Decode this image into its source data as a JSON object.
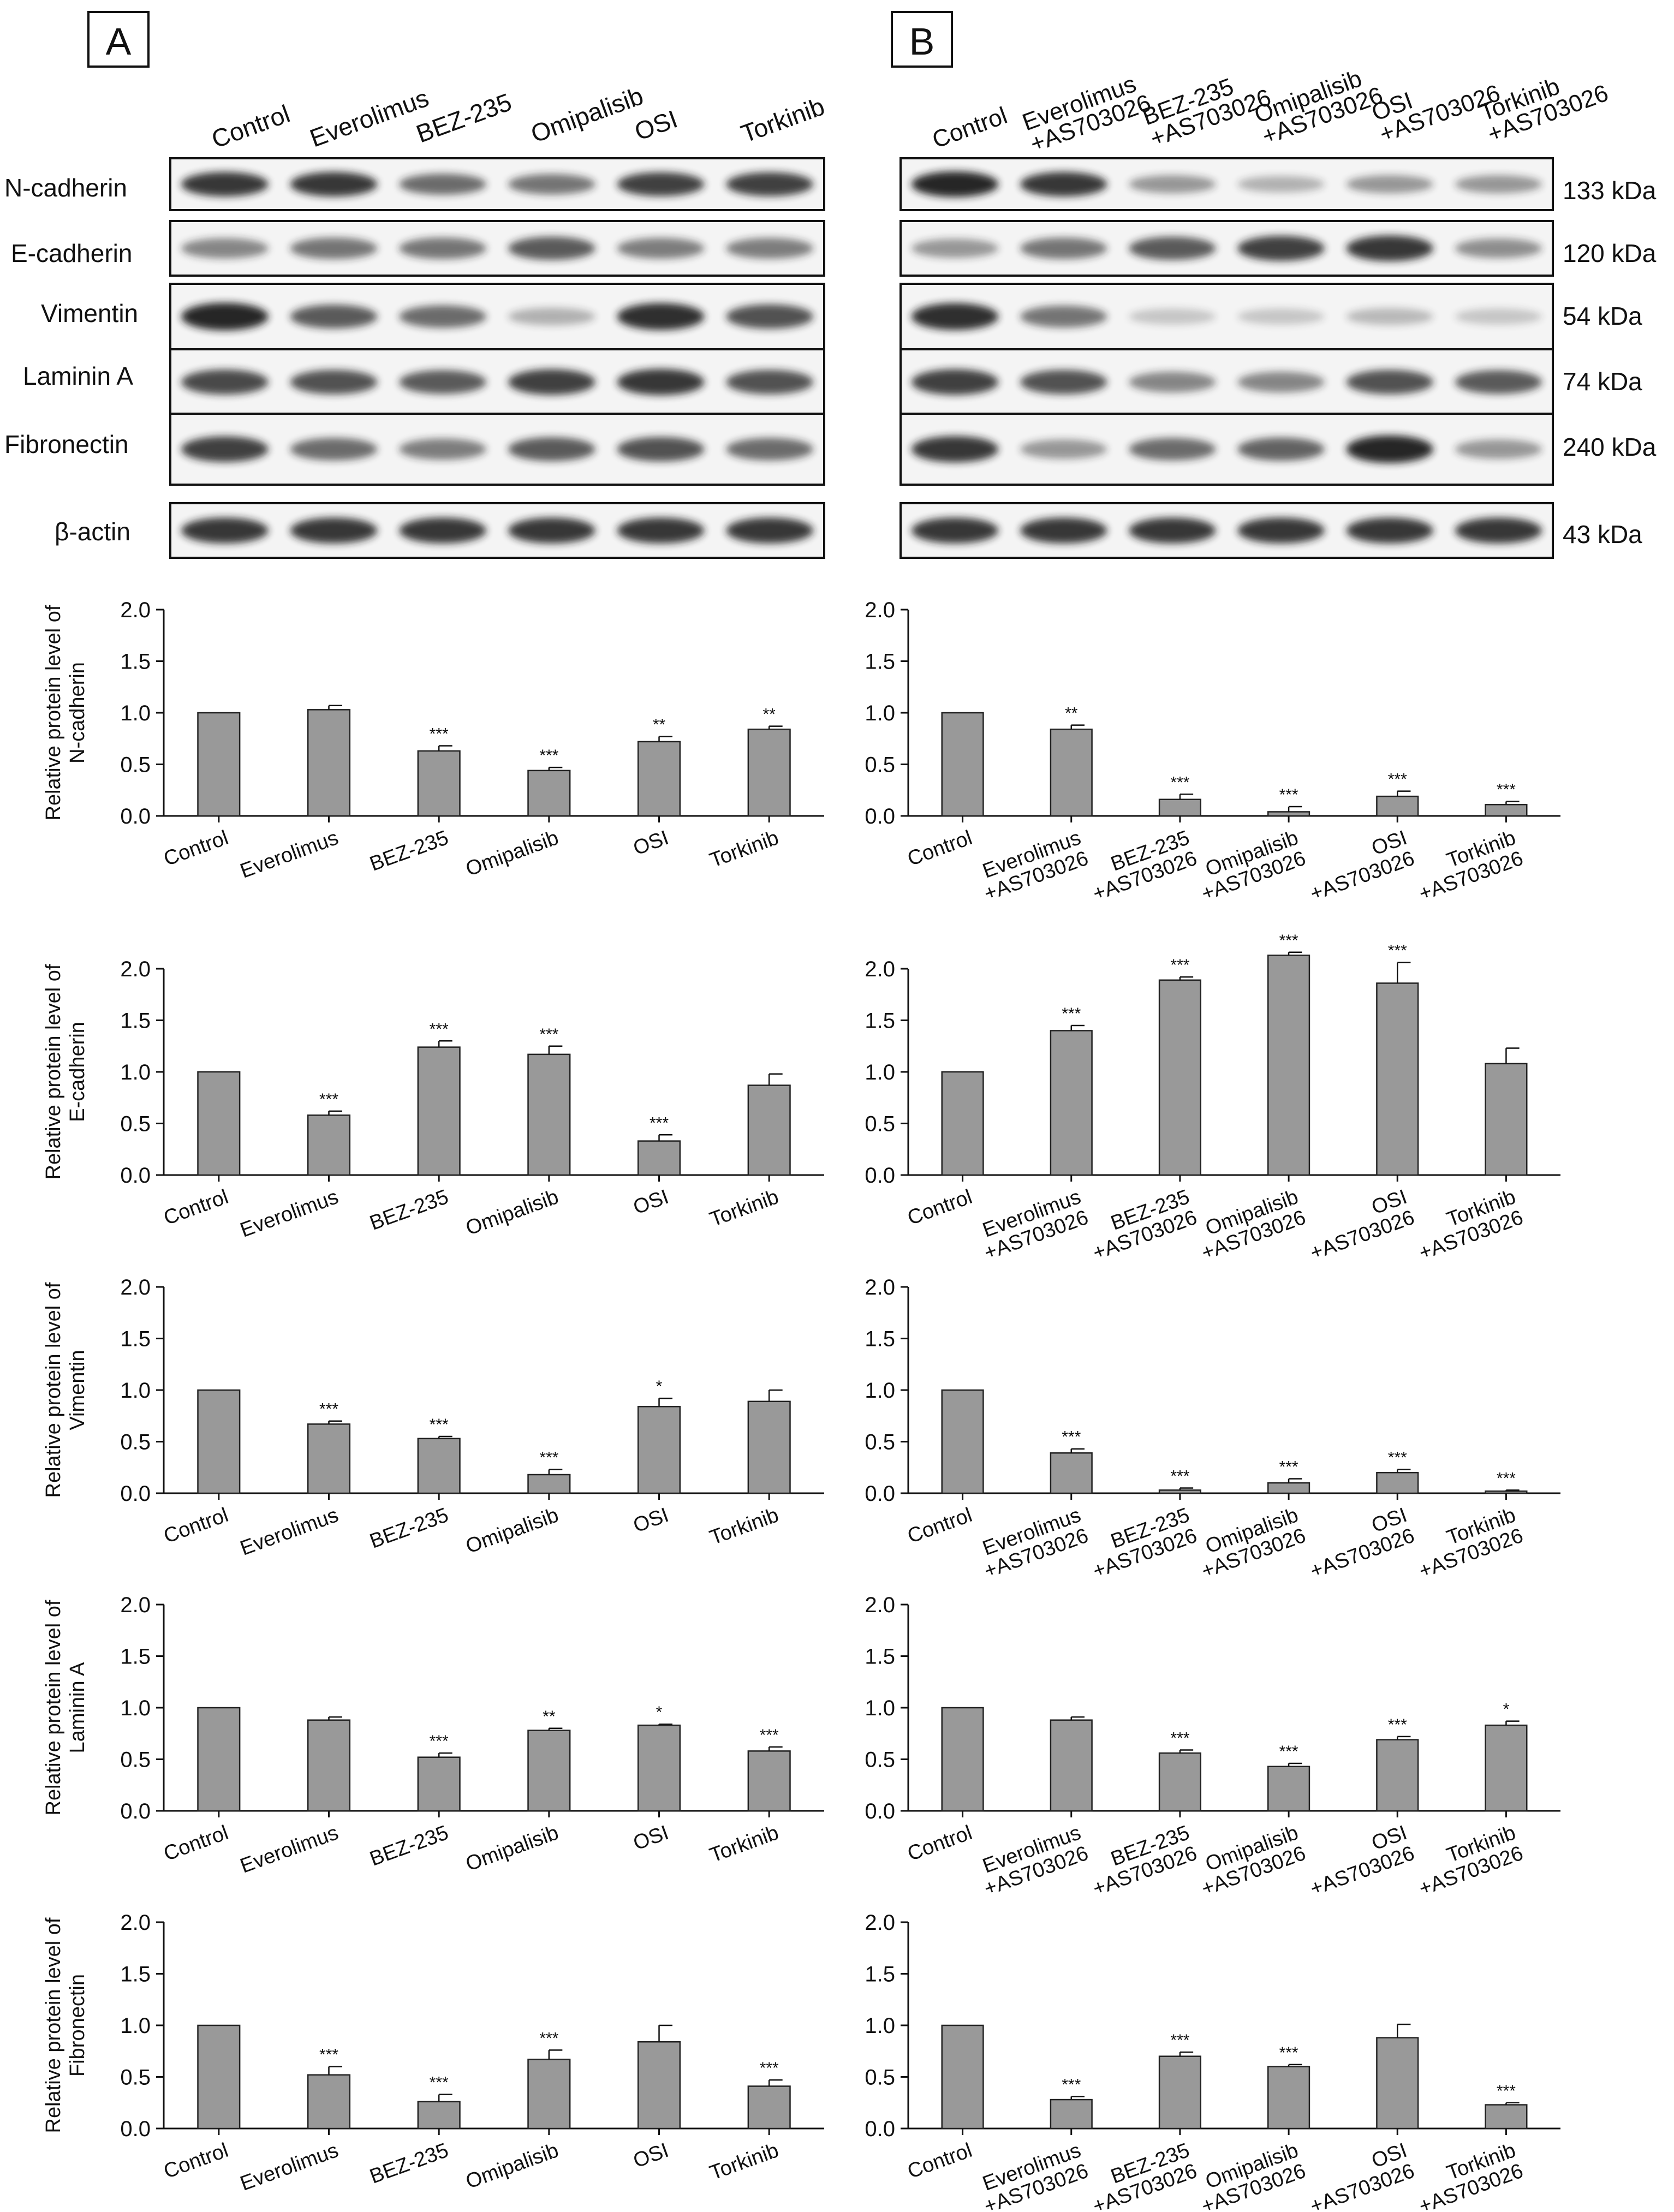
{
  "panels": {
    "A": {
      "letter": "A",
      "lanes": [
        "Control",
        "Everolimus",
        "BEZ-235",
        "Omipalisib",
        "OSI",
        "Torkinib"
      ],
      "blot_rows": [
        "N-cadherin",
        "E-cadherin",
        "Vimentin",
        "Laminin A",
        "Fibronectin",
        "β-actin"
      ]
    },
    "B": {
      "letter": "B",
      "lanes": [
        {
          "l1": "Control",
          "l2": ""
        },
        {
          "l1": "Everolimus",
          "l2": "+AS703026"
        },
        {
          "l1": "BEZ-235",
          "l2": "+AS703026"
        },
        {
          "l1": "Omipalisib",
          "l2": "+AS703026"
        },
        {
          "l1": "OSI",
          "l2": "+AS703026"
        },
        {
          "l1": "Torkinib",
          "l2": "+AS703026"
        }
      ],
      "kda": [
        "133 kDa",
        "120 kDa",
        "54 kDa",
        "74 kDa",
        "240 kDa",
        "43 kDa"
      ]
    }
  },
  "colors": {
    "bar_fill": "#999999",
    "bar_stroke": "#222222",
    "blot_band": "#1a1a1a",
    "blot_bg": "#f4f4f4"
  },
  "chart_data": [
    {
      "type": "bar",
      "panel": "A",
      "protein": "N-cadherin",
      "ylabel": [
        "Relative protein level of",
        "N-cadherin"
      ],
      "ylim": [
        0,
        2.0
      ],
      "yticks": [
        "0.0",
        "0.5",
        "1.0",
        "1.5",
        "2.0"
      ],
      "categories": [
        "Control",
        "Everolimus",
        "BEZ-235",
        "Omipalisib",
        "OSI",
        "Torkinib"
      ],
      "values": [
        1.0,
        1.03,
        0.63,
        0.44,
        0.72,
        0.84
      ],
      "errors": [
        0,
        0.04,
        0.05,
        0.03,
        0.05,
        0.03
      ],
      "significance": [
        "",
        "",
        "***",
        "***",
        "**",
        "**"
      ]
    },
    {
      "type": "bar",
      "panel": "B",
      "protein": "N-cadherin",
      "ylabel": [],
      "ylim": [
        0,
        2.0
      ],
      "yticks": [
        "0.0",
        "0.5",
        "1.0",
        "1.5",
        "2.0"
      ],
      "categories": [
        [
          "Control",
          ""
        ],
        [
          "Everolimus",
          "+AS703026"
        ],
        [
          "BEZ-235",
          "+AS703026"
        ],
        [
          "Omipalisib",
          "+AS703026"
        ],
        [
          "OSI",
          "+AS703026"
        ],
        [
          "Torkinib",
          "+AS703026"
        ]
      ],
      "values": [
        1.0,
        0.84,
        0.16,
        0.04,
        0.19,
        0.11
      ],
      "errors": [
        0,
        0.04,
        0.05,
        0.05,
        0.05,
        0.03
      ],
      "significance": [
        "",
        "**",
        "***",
        "***",
        "***",
        "***"
      ]
    },
    {
      "type": "bar",
      "panel": "A",
      "protein": "E-cadherin",
      "ylabel": [
        "Relative protein level of",
        "E-cadherin"
      ],
      "ylim": [
        0,
        2.0
      ],
      "yticks": [
        "0.0",
        "0.5",
        "1.0",
        "1.5",
        "2.0"
      ],
      "categories": [
        "Control",
        "Everolimus",
        "BEZ-235",
        "Omipalisib",
        "OSI",
        "Torkinib"
      ],
      "values": [
        1.0,
        0.58,
        1.24,
        1.17,
        0.33,
        0.87
      ],
      "errors": [
        0,
        0.04,
        0.06,
        0.08,
        0.06,
        0.11
      ],
      "significance": [
        "",
        "***",
        "***",
        "***",
        "***",
        ""
      ]
    },
    {
      "type": "bar",
      "panel": "B",
      "protein": "E-cadherin",
      "ylabel": [],
      "ylim": [
        0,
        2.0
      ],
      "yticks": [
        "0.0",
        "0.5",
        "1.0",
        "1.5",
        "2.0"
      ],
      "categories": [
        [
          "Control",
          ""
        ],
        [
          "Everolimus",
          "+AS703026"
        ],
        [
          "BEZ-235",
          "+AS703026"
        ],
        [
          "Omipalisib",
          "+AS703026"
        ],
        [
          "OSI",
          "+AS703026"
        ],
        [
          "Torkinib",
          "+AS703026"
        ]
      ],
      "values": [
        1.0,
        1.4,
        1.89,
        2.13,
        1.86,
        1.08
      ],
      "errors": [
        0,
        0.05,
        0.03,
        0.03,
        0.2,
        0.15
      ],
      "significance": [
        "",
        "***",
        "***",
        "***",
        "***",
        ""
      ]
    },
    {
      "type": "bar",
      "panel": "A",
      "protein": "Vimentin",
      "ylabel": [
        "Relative protein level of",
        "Vimentin"
      ],
      "ylim": [
        0,
        2.0
      ],
      "yticks": [
        "0.0",
        "0.5",
        "1.0",
        "1.5",
        "2.0"
      ],
      "categories": [
        "Control",
        "Everolimus",
        "BEZ-235",
        "Omipalisib",
        "OSI",
        "Torkinib"
      ],
      "values": [
        1.0,
        0.67,
        0.53,
        0.18,
        0.84,
        0.89
      ],
      "errors": [
        0,
        0.03,
        0.02,
        0.05,
        0.08,
        0.11
      ],
      "significance": [
        "",
        "***",
        "***",
        "***",
        "*",
        ""
      ]
    },
    {
      "type": "bar",
      "panel": "B",
      "protein": "Vimentin",
      "ylabel": [],
      "ylim": [
        0,
        2.0
      ],
      "yticks": [
        "0.0",
        "0.5",
        "1.0",
        "1.5",
        "2.0"
      ],
      "categories": [
        [
          "Control",
          ""
        ],
        [
          "Everolimus",
          "+AS703026"
        ],
        [
          "BEZ-235",
          "+AS703026"
        ],
        [
          "Omipalisib",
          "+AS703026"
        ],
        [
          "OSI",
          "+AS703026"
        ],
        [
          "Torkinib",
          "+AS703026"
        ]
      ],
      "values": [
        1.0,
        0.39,
        0.03,
        0.1,
        0.2,
        0.02
      ],
      "errors": [
        0,
        0.04,
        0.02,
        0.04,
        0.03,
        0.01
      ],
      "significance": [
        "",
        "***",
        "***",
        "***",
        "***",
        "***"
      ]
    },
    {
      "type": "bar",
      "panel": "A",
      "protein": "Laminin A",
      "ylabel": [
        "Relative protein level of",
        "Laminin A"
      ],
      "ylim": [
        0,
        2.0
      ],
      "yticks": [
        "0.0",
        "0.5",
        "1.0",
        "1.5",
        "2.0"
      ],
      "categories": [
        "Control",
        "Everolimus",
        "BEZ-235",
        "Omipalisib",
        "OSI",
        "Torkinib"
      ],
      "values": [
        1.0,
        0.88,
        0.52,
        0.78,
        0.83,
        0.58
      ],
      "errors": [
        0,
        0.03,
        0.04,
        0.02,
        0.01,
        0.04
      ],
      "significance": [
        "",
        "",
        "***",
        "**",
        "*",
        "***"
      ]
    },
    {
      "type": "bar",
      "panel": "B",
      "protein": "Laminin A",
      "ylabel": [],
      "ylim": [
        0,
        2.0
      ],
      "yticks": [
        "0.0",
        "0.5",
        "1.0",
        "1.5",
        "2.0"
      ],
      "categories": [
        [
          "Control",
          ""
        ],
        [
          "Everolimus",
          "+AS703026"
        ],
        [
          "BEZ-235",
          "+AS703026"
        ],
        [
          "Omipalisib",
          "+AS703026"
        ],
        [
          "OSI",
          "+AS703026"
        ],
        [
          "Torkinib",
          "+AS703026"
        ]
      ],
      "values": [
        1.0,
        0.88,
        0.56,
        0.43,
        0.69,
        0.83
      ],
      "errors": [
        0,
        0.03,
        0.03,
        0.03,
        0.03,
        0.04
      ],
      "significance": [
        "",
        "",
        "***",
        "***",
        "***",
        "*"
      ]
    },
    {
      "type": "bar",
      "panel": "A",
      "protein": "Fibronectin",
      "ylabel": [
        "Relative protein level of",
        "Fibronectin"
      ],
      "ylim": [
        0,
        2.0
      ],
      "yticks": [
        "0.0",
        "0.5",
        "1.0",
        "1.5",
        "2.0"
      ],
      "categories": [
        "Control",
        "Everolimus",
        "BEZ-235",
        "Omipalisib",
        "OSI",
        "Torkinib"
      ],
      "values": [
        1.0,
        0.52,
        0.26,
        0.67,
        0.84,
        0.41
      ],
      "errors": [
        0,
        0.08,
        0.07,
        0.09,
        0.16,
        0.06
      ],
      "significance": [
        "",
        "***",
        "***",
        "***",
        "",
        "***"
      ]
    },
    {
      "type": "bar",
      "panel": "B",
      "protein": "Fibronectin",
      "ylabel": [],
      "ylim": [
        0,
        2.0
      ],
      "yticks": [
        "0.0",
        "0.5",
        "1.0",
        "1.5",
        "2.0"
      ],
      "categories": [
        [
          "Control",
          ""
        ],
        [
          "Everolimus",
          "+AS703026"
        ],
        [
          "BEZ-235",
          "+AS703026"
        ],
        [
          "Omipalisib",
          "+AS703026"
        ],
        [
          "OSI",
          "+AS703026"
        ],
        [
          "Torkinib",
          "+AS703026"
        ]
      ],
      "values": [
        1.0,
        0.28,
        0.7,
        0.6,
        0.88,
        0.23
      ],
      "errors": [
        0,
        0.03,
        0.04,
        0.02,
        0.13,
        0.02
      ],
      "significance": [
        "",
        "***",
        "***",
        "***",
        "",
        "***"
      ]
    }
  ]
}
